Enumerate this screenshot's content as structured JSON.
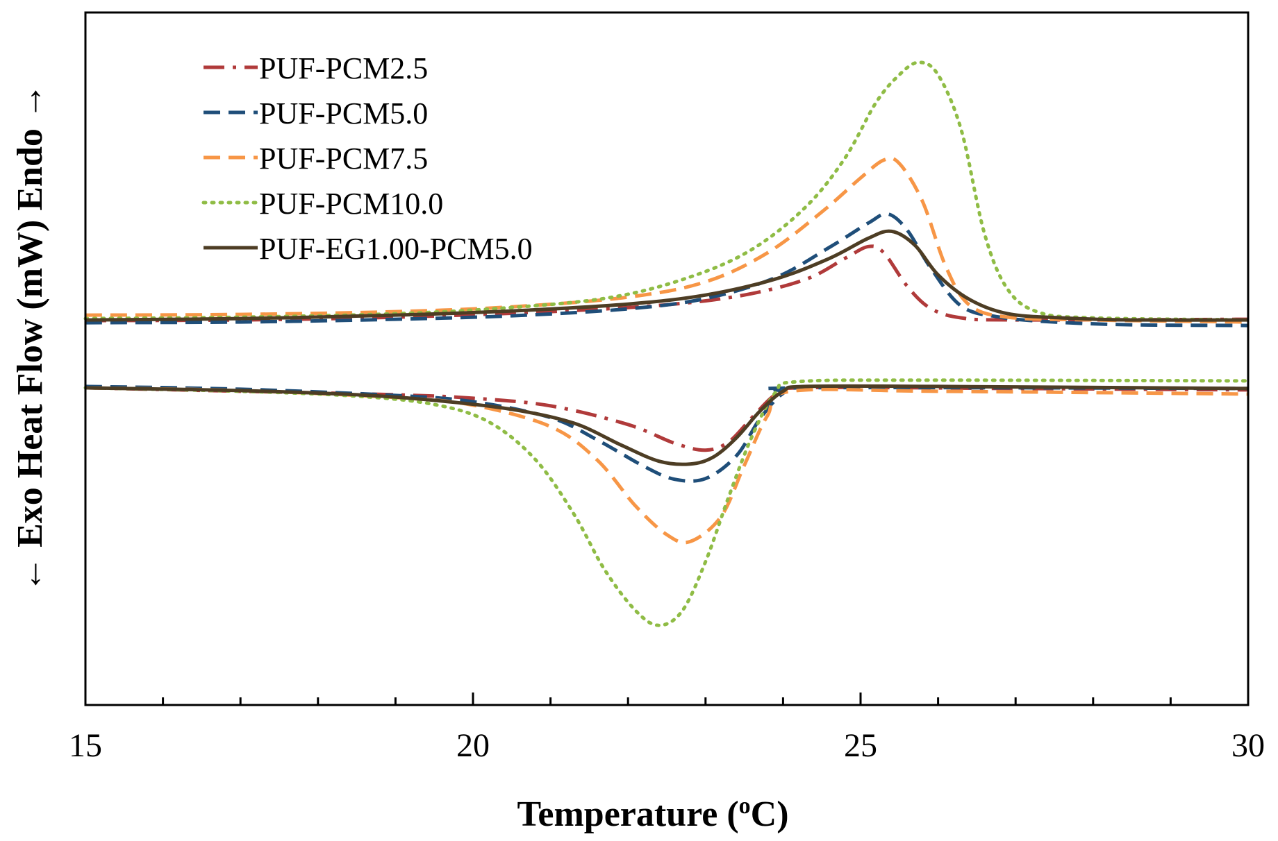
{
  "chart_data": {
    "type": "line",
    "xlabel": "Temperature (",
    "xlabel_sup": "o",
    "xlabel_end": "C)",
    "ylabel": "← Exo  Heat Flow (mW) Endo →",
    "xlim": [
      15,
      30
    ],
    "ylim": [
      0,
      100
    ],
    "xticks": [
      15,
      20,
      25,
      30
    ],
    "xtick_labels": [
      "15",
      "20",
      "25",
      "30"
    ],
    "minor_xticks": [
      16,
      17,
      18,
      19,
      21,
      22,
      23,
      24,
      26,
      27,
      28,
      29
    ],
    "legend_position": "top-left",
    "grid": false,
    "series": [
      {
        "name": "PUF-PCM2.5",
        "color": "#b03a3a",
        "dash": "dashdot",
        "heating": [
          [
            15,
            55.5
          ],
          [
            17,
            55.6
          ],
          [
            19,
            56.0
          ],
          [
            21,
            56.8
          ],
          [
            22.5,
            57.8
          ],
          [
            23.5,
            59.2
          ],
          [
            24.3,
            61.5
          ],
          [
            24.8,
            64.5
          ],
          [
            25.1,
            66.2
          ],
          [
            25.3,
            65.3
          ],
          [
            25.6,
            60.5
          ],
          [
            25.9,
            57.3
          ],
          [
            26.3,
            55.9
          ],
          [
            27,
            55.6
          ],
          [
            30,
            55.7
          ]
        ],
        "cooling": [
          [
            15,
            45.8
          ],
          [
            17,
            45.3
          ],
          [
            19,
            44.8
          ],
          [
            20,
            44.3
          ],
          [
            21,
            43.2
          ],
          [
            22,
            40.5
          ],
          [
            22.6,
            37.8
          ],
          [
            23.0,
            36.8
          ],
          [
            23.3,
            38.0
          ],
          [
            23.6,
            41.5
          ],
          [
            23.9,
            44.8
          ],
          [
            24.2,
            45.8
          ],
          [
            27,
            45.7
          ],
          [
            30,
            45.5
          ]
        ]
      },
      {
        "name": "PUF-PCM5.0",
        "color": "#1f4e79",
        "dash": "dash",
        "heating": [
          [
            15,
            55.2
          ],
          [
            17,
            55.3
          ],
          [
            19,
            55.7
          ],
          [
            20.5,
            56.2
          ],
          [
            22,
            57.2
          ],
          [
            23,
            58.7
          ],
          [
            23.9,
            61.7
          ],
          [
            24.6,
            66.1
          ],
          [
            25.1,
            69.6
          ],
          [
            25.35,
            70.9
          ],
          [
            25.6,
            68.6
          ],
          [
            25.9,
            63.2
          ],
          [
            26.3,
            57.6
          ],
          [
            26.8,
            56.0
          ],
          [
            27.5,
            55.3
          ],
          [
            28.5,
            54.9
          ],
          [
            30,
            54.8
          ]
        ],
        "cooling": [
          [
            15,
            46.0
          ],
          [
            17,
            45.6
          ],
          [
            19,
            44.7
          ],
          [
            20,
            43.8
          ],
          [
            21,
            41.5
          ],
          [
            21.6,
            38.3
          ],
          [
            22.2,
            34.5
          ],
          [
            22.6,
            32.6
          ],
          [
            23.0,
            32.7
          ],
          [
            23.4,
            36.0
          ],
          [
            23.7,
            41.3
          ],
          [
            24.0,
            45.0
          ],
          [
            24.3,
            45.8
          ],
          [
            30,
            45.7
          ]
        ]
      },
      {
        "name": "PUF-PCM7.5",
        "color": "#f79646",
        "dash": "dash",
        "heating": [
          [
            15,
            56.3
          ],
          [
            17,
            56.4
          ],
          [
            19,
            56.8
          ],
          [
            20.5,
            57.5
          ],
          [
            22,
            58.9
          ],
          [
            23,
            61.1
          ],
          [
            23.8,
            65.3
          ],
          [
            24.5,
            71.2
          ],
          [
            25.0,
            76.1
          ],
          [
            25.3,
            78.7
          ],
          [
            25.5,
            78.2
          ],
          [
            25.8,
            72.7
          ],
          [
            26.1,
            63.3
          ],
          [
            26.4,
            57.8
          ],
          [
            26.9,
            56.0
          ],
          [
            28,
            55.6
          ],
          [
            30,
            55.3
          ]
        ],
        "cooling": [
          [
            15,
            45.8
          ],
          [
            17,
            45.4
          ],
          [
            19,
            44.4
          ],
          [
            20,
            43.3
          ],
          [
            21,
            40.2
          ],
          [
            21.6,
            35.4
          ],
          [
            22.1,
            28.7
          ],
          [
            22.5,
            24.6
          ],
          [
            22.8,
            23.6
          ],
          [
            23.2,
            27.2
          ],
          [
            23.5,
            34.6
          ],
          [
            23.8,
            41.8
          ],
          [
            24.1,
            45.3
          ],
          [
            26,
            45.3
          ],
          [
            30,
            44.9
          ]
        ]
      },
      {
        "name": "PUF-PCM10.0",
        "color": "#8fbc45",
        "dash": "dot",
        "heating": [
          [
            15,
            55.8
          ],
          [
            17,
            56.0
          ],
          [
            19,
            56.5
          ],
          [
            20.5,
            57.4
          ],
          [
            21.8,
            58.9
          ],
          [
            22.8,
            61.8
          ],
          [
            23.6,
            65.8
          ],
          [
            24.3,
            72.0
          ],
          [
            24.8,
            79.0
          ],
          [
            25.2,
            87.0
          ],
          [
            25.5,
            91.0
          ],
          [
            25.75,
            92.8
          ],
          [
            26.0,
            91.0
          ],
          [
            26.3,
            83.0
          ],
          [
            26.6,
            68.0
          ],
          [
            26.9,
            60.0
          ],
          [
            27.3,
            56.7
          ],
          [
            28,
            55.9
          ],
          [
            30,
            55.6
          ]
        ],
        "cooling": [
          [
            15,
            45.8
          ],
          [
            17,
            45.3
          ],
          [
            18.5,
            44.6
          ],
          [
            19.5,
            43.4
          ],
          [
            20.2,
            40.9
          ],
          [
            20.8,
            35.5
          ],
          [
            21.3,
            27.6
          ],
          [
            21.7,
            19.5
          ],
          [
            22.1,
            13.6
          ],
          [
            22.4,
            11.5
          ],
          [
            22.7,
            13.6
          ],
          [
            23.0,
            20.7
          ],
          [
            23.3,
            30.1
          ],
          [
            23.6,
            38.8
          ],
          [
            23.9,
            45.1
          ],
          [
            24.2,
            46.7
          ],
          [
            26,
            46.9
          ],
          [
            30,
            46.8
          ]
        ]
      },
      {
        "name": "PUF-EG1.00-PCM5.0",
        "color": "#4d3d24",
        "dash": "solid",
        "heating": [
          [
            15,
            55.6
          ],
          [
            17,
            55.8
          ],
          [
            19,
            56.3
          ],
          [
            20.5,
            56.9
          ],
          [
            22,
            57.9
          ],
          [
            23.0,
            59.2
          ],
          [
            23.9,
            61.5
          ],
          [
            24.6,
            64.5
          ],
          [
            25.1,
            67.4
          ],
          [
            25.4,
            68.4
          ],
          [
            25.7,
            66.4
          ],
          [
            26.0,
            62.1
          ],
          [
            26.4,
            58.6
          ],
          [
            26.9,
            56.5
          ],
          [
            27.6,
            55.9
          ],
          [
            28.5,
            55.6
          ],
          [
            30,
            55.6
          ]
        ],
        "cooling": [
          [
            15,
            45.8
          ],
          [
            17,
            45.4
          ],
          [
            18.5,
            44.8
          ],
          [
            19.5,
            44.0
          ],
          [
            20.5,
            42.7
          ],
          [
            21.3,
            40.7
          ],
          [
            21.9,
            37.6
          ],
          [
            22.4,
            35.2
          ],
          [
            22.8,
            34.8
          ],
          [
            23.1,
            35.8
          ],
          [
            23.4,
            38.6
          ],
          [
            23.7,
            42.4
          ],
          [
            24.0,
            45.3
          ],
          [
            24.3,
            46.0
          ],
          [
            26,
            46.0
          ],
          [
            30,
            45.7
          ]
        ]
      }
    ]
  }
}
